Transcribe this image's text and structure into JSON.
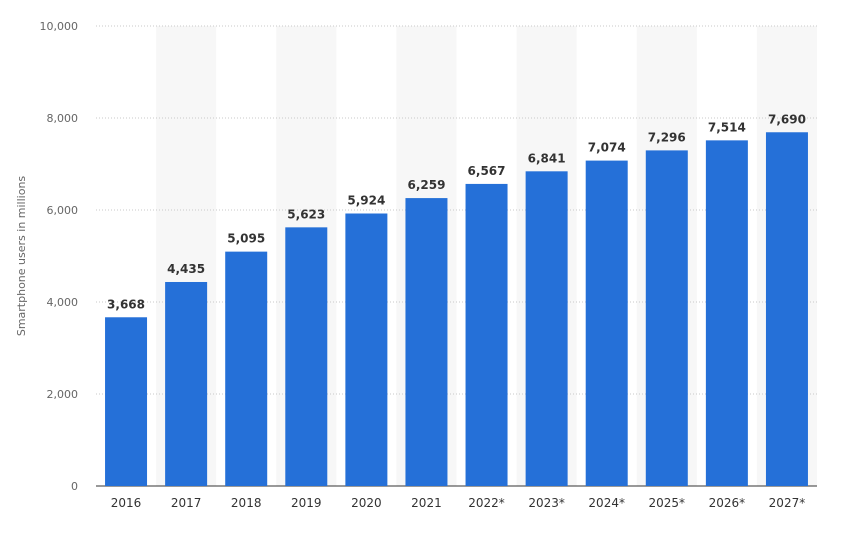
{
  "chart_data": {
    "type": "bar",
    "ylabel": "Smartphone users in millions",
    "xlabel": "",
    "ylim": [
      0,
      10000
    ],
    "yticks": [
      0,
      2000,
      4000,
      6000,
      8000,
      10000
    ],
    "ytick_labels": [
      "0",
      "2,000",
      "4,000",
      "6,000",
      "8,000",
      "10,000"
    ],
    "grid": "horizontal dotted",
    "categories": [
      "2016",
      "2017",
      "2018",
      "2019",
      "2020",
      "2021",
      "2022*",
      "2023*",
      "2024*",
      "2025*",
      "2026*",
      "2027*"
    ],
    "values": [
      3668,
      4435,
      5095,
      5623,
      5924,
      6259,
      6567,
      6841,
      7074,
      7296,
      7514,
      7690
    ],
    "value_labels": [
      "3,668",
      "4,435",
      "5,095",
      "5,623",
      "5,924",
      "6,259",
      "6,567",
      "6,841",
      "7,074",
      "7,296",
      "7,514",
      "7,690"
    ],
    "bar_color": "#2570d8",
    "band_color": "#f7f7f7",
    "grid_color": "#c8c8c8"
  }
}
